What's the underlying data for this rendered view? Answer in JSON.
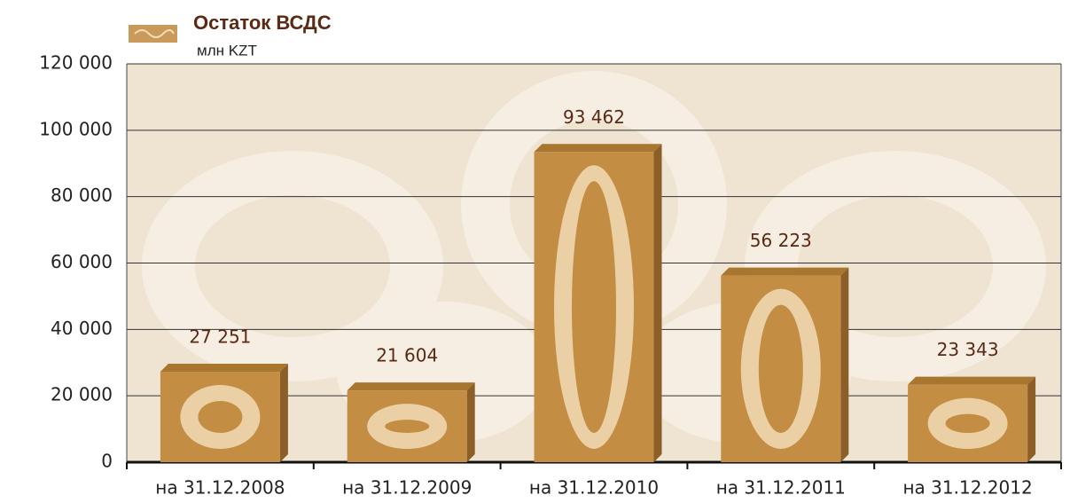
{
  "chart_data": {
    "type": "bar",
    "title": "Остаток ВСДС",
    "subtitle": "млн KZT",
    "categories": [
      "на 31.12.2008",
      "на 31.12.2009",
      "на 31.12.2010",
      "на 31.12.2011",
      "на 31.12.2012"
    ],
    "values": [
      27251,
      21604,
      93462,
      56223,
      23343
    ],
    "value_labels": [
      "27 251",
      "21 604",
      "93 462",
      "56 223",
      "23 343"
    ],
    "color": "#c38d43",
    "ylim": [
      0,
      120000
    ],
    "yticks": [
      0,
      {
        "value": 20000,
        "label": "20 000"
      },
      {
        "value": 40000,
        "label": "40 000"
      },
      {
        "value": 60000,
        "label": "60 000"
      },
      {
        "value": 80000,
        "label": "80 000"
      },
      {
        "value": 100000,
        "label": "100 000"
      },
      {
        "value": 120000,
        "label": "120 000"
      }
    ],
    "grid": true
  }
}
